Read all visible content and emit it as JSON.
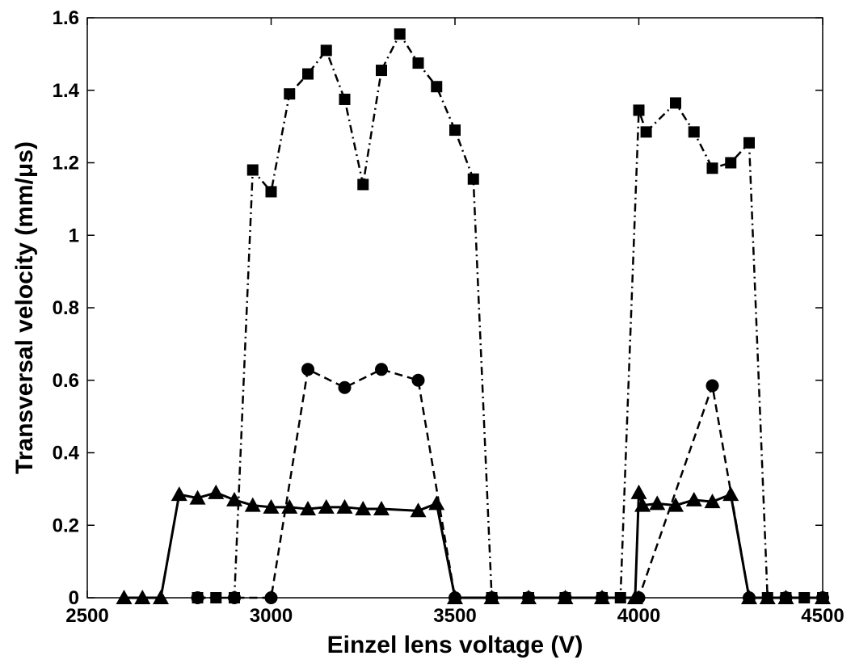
{
  "chart_data": {
    "type": "line",
    "xlabel": "Einzel lens voltage (V)",
    "ylabel": "Transversal velocity (mm/μs)",
    "xlim": [
      2500,
      4500
    ],
    "xticks": [
      2500,
      3000,
      3500,
      4000,
      4500
    ],
    "ylim": [
      0,
      1.6
    ],
    "yticks": [
      0,
      0.2,
      0.4,
      0.6,
      0.8,
      1,
      1.2,
      1.4,
      1.6
    ],
    "grid": false,
    "series": [
      {
        "color": "#000000",
        "marker": "square",
        "dash": "dashdot",
        "x": [
          2800,
          2850,
          2900,
          2950,
          3000,
          3050,
          3100,
          3150,
          3200,
          3250,
          3300,
          3350,
          3400,
          3450,
          3500,
          3550,
          3600,
          3700,
          3800,
          3900,
          3950,
          4000,
          4020,
          4100,
          4150,
          4200,
          4250,
          4300,
          4350,
          4400,
          4450,
          4500
        ],
        "values": [
          0,
          0,
          0,
          1.18,
          1.12,
          1.39,
          1.445,
          1.51,
          1.375,
          1.14,
          1.455,
          1.555,
          1.475,
          1.41,
          1.29,
          1.155,
          0,
          0,
          0,
          0,
          0,
          1.345,
          1.285,
          1.365,
          1.285,
          1.185,
          1.2,
          1.255,
          0,
          0,
          0,
          0
        ]
      },
      {
        "color": "#000000",
        "marker": "circle",
        "dash": "dashed",
        "x": [
          2800,
          2900,
          3000,
          3100,
          3200,
          3300,
          3400,
          3500,
          3600,
          3700,
          3800,
          3900,
          4000,
          4200,
          4300,
          4400,
          4500
        ],
        "values": [
          0,
          0,
          0,
          0.63,
          0.58,
          0.63,
          0.6,
          0,
          0,
          0,
          0,
          0,
          0,
          0.585,
          0,
          0,
          0
        ]
      },
      {
        "color": "#000000",
        "marker": "triangle",
        "dash": "solid",
        "x": [
          2600,
          2650,
          2700,
          2750,
          2800,
          2850,
          2900,
          2950,
          3000,
          3050,
          3100,
          3150,
          3200,
          3250,
          3300,
          3400,
          3450,
          3500,
          3600,
          3700,
          3800,
          3900,
          3990,
          4000,
          4010,
          4050,
          4100,
          4150,
          4200,
          4250,
          4300,
          4350,
          4400,
          4500
        ],
        "values": [
          0,
          0,
          0,
          0.285,
          0.275,
          0.29,
          0.27,
          0.255,
          0.25,
          0.25,
          0.245,
          0.25,
          0.25,
          0.245,
          0.245,
          0.24,
          0.26,
          0,
          0,
          0,
          0,
          0,
          0,
          0.29,
          0.255,
          0.26,
          0.255,
          0.27,
          0.265,
          0.285,
          0,
          0,
          0,
          0
        ]
      }
    ]
  }
}
